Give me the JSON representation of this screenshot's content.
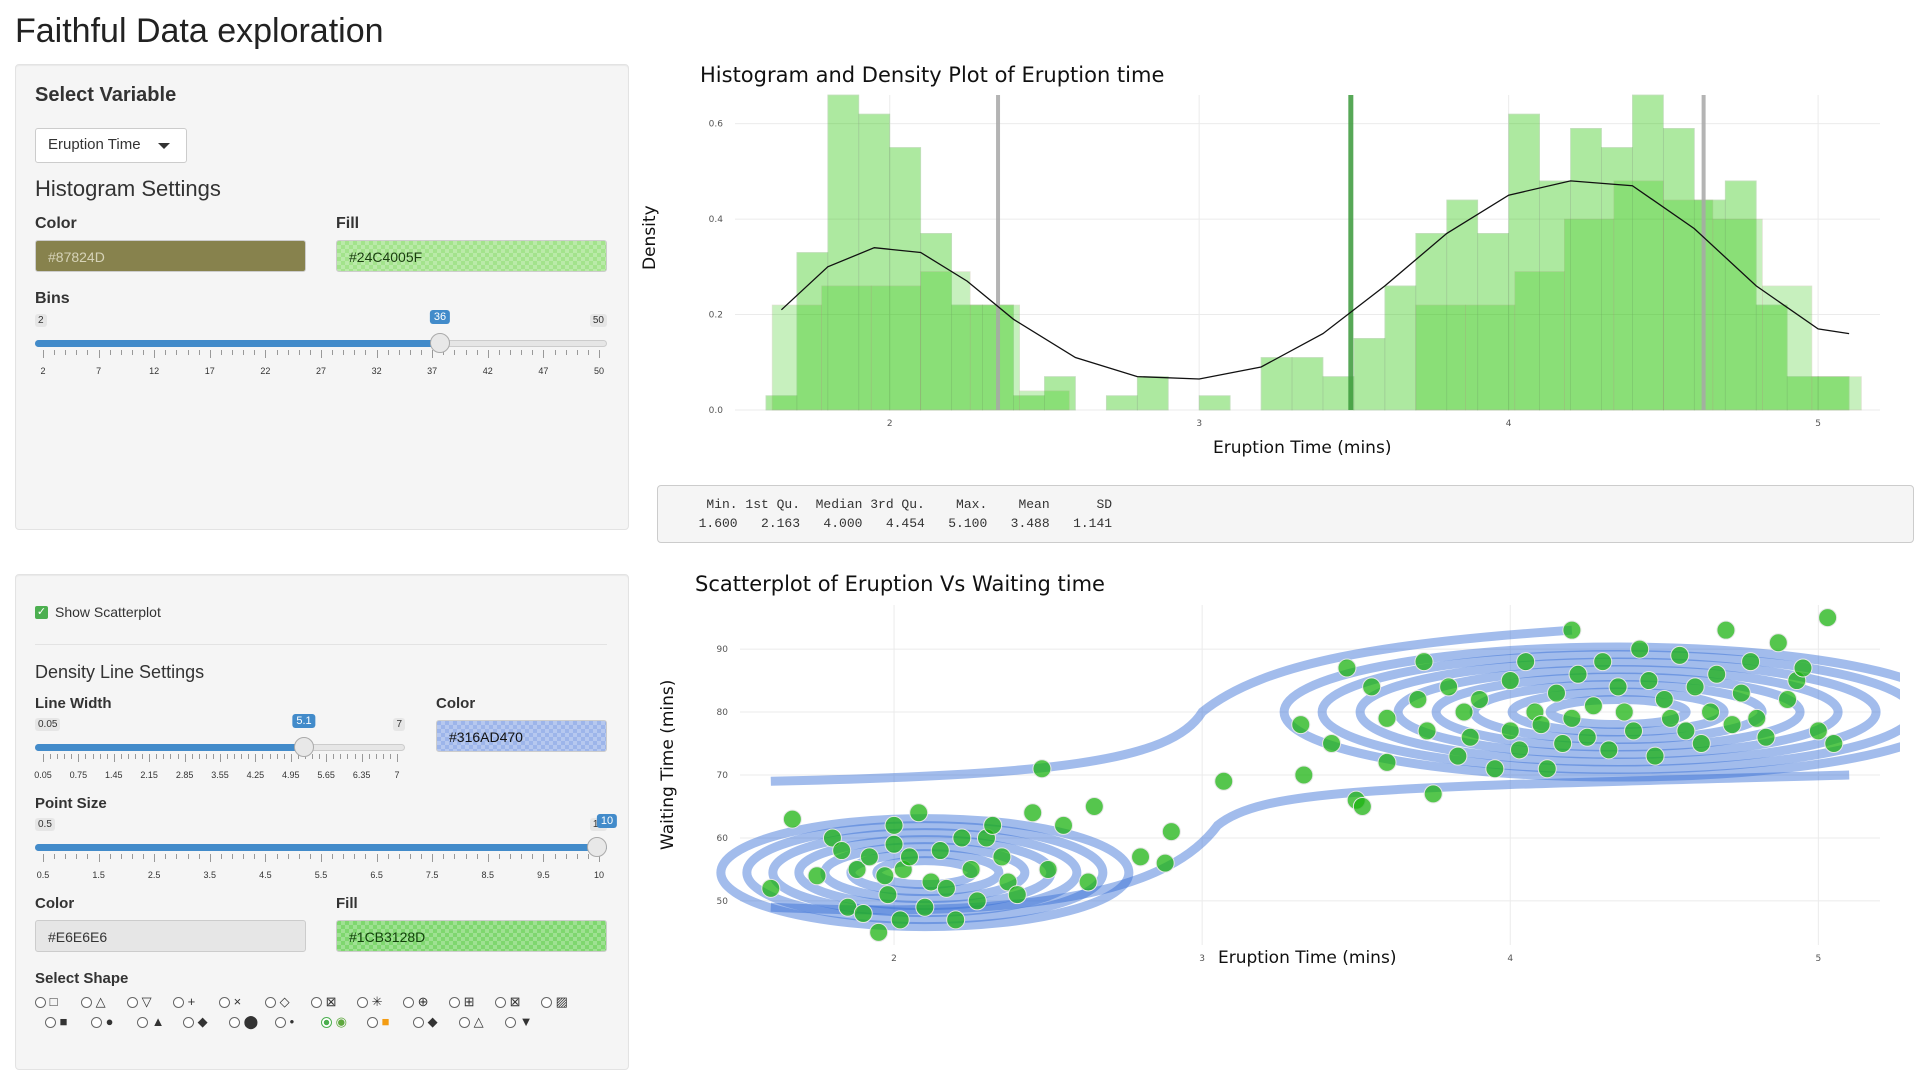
{
  "app": {
    "title": "Faithful Data exploration"
  },
  "panel1": {
    "heading": "Select Variable",
    "select_value": "Eruption Time",
    "hist_heading": "Histogram Settings",
    "color_label": "Color",
    "color_value": "#87824D",
    "fill_label": "Fill",
    "fill_value": "#24C4005F",
    "bins_label": "Bins",
    "bins": {
      "min": "2",
      "max": "50",
      "value": "36",
      "fraction": 0.708,
      "ticks": [
        "2",
        "7",
        "12",
        "17",
        "22",
        "27",
        "32",
        "37",
        "42",
        "47",
        "50"
      ]
    }
  },
  "panel2": {
    "show_scatter_label": "Show Scatterplot",
    "density_heading": "Density Line Settings",
    "linewidth_label": "Line Width",
    "linewidth": {
      "min": "0.05",
      "max": "7",
      "value": "5.1",
      "fraction": 0.727,
      "ticks": [
        "0.05",
        "0.75",
        "1.45",
        "2.15",
        "2.85",
        "3.55",
        "4.25",
        "4.95",
        "5.65",
        "6.35",
        "7"
      ]
    },
    "color_label": "Color",
    "color_value": "#316AD470",
    "pointsize_label": "Point Size",
    "pointsize": {
      "min": "0.5",
      "max": "10",
      "value": "10",
      "fraction": 1.0,
      "ticks": [
        "0.5",
        "1.5",
        "2.5",
        "3.5",
        "4.5",
        "5.5",
        "6.5",
        "7.5",
        "8.5",
        "9.5",
        "10"
      ]
    },
    "pt_color_label": "Color",
    "pt_color_value": "#E6E6E6",
    "pt_fill_label": "Fill",
    "pt_fill_value": "#1CB3128D",
    "shape_label": "Select Shape",
    "shapes_row1": [
      "□",
      "△",
      "▽",
      "+",
      "×",
      "◇",
      "⊠",
      "✳",
      "⊕",
      "⊞",
      "⊠",
      "▨"
    ],
    "shapes_row2": [
      "■",
      "●",
      "▲",
      "◆",
      "⬤",
      "•",
      "◉",
      "■",
      "◆",
      "△",
      "▼"
    ],
    "selected_shape_index": 18
  },
  "summary": {
    "header": "   Min. 1st Qu.  Median 3rd Qu.    Max.    Mean      SD",
    "values": "  1.600   2.163   4.000   4.454   5.100   3.488   1.141"
  },
  "histogram": {
    "title": "Histogram and Density Plot of Eruption time",
    "xlabel": "Eruption Time (mins)",
    "ylabel": "Density"
  },
  "scatter": {
    "title": "Scatterplot of Eruption Vs Waiting time",
    "xlabel": "Eruption Time (mins)",
    "ylabel": "Waiting Time (mins)"
  },
  "colors": {
    "accent": "#428bca",
    "hist_fill": "#24C400",
    "point_fill": "#1CB312",
    "contour": "#316AD4"
  },
  "chart_data": [
    {
      "type": "bar",
      "title": "Histogram and Density Plot of Eruption time",
      "xlabel": "Eruption Time (mins)",
      "ylabel": "Density",
      "xlim": [
        1.5,
        5.2
      ],
      "ylim": [
        0,
        0.66
      ],
      "xticks": [
        "2",
        "3",
        "4",
        "5"
      ],
      "yticks": [
        "0.0",
        "0.2",
        "0.4",
        "0.6"
      ],
      "bars_fine": {
        "x": [
          1.6,
          1.7,
          1.8,
          1.9,
          2.0,
          2.1,
          2.2,
          2.3,
          2.4,
          2.5,
          2.6,
          2.7,
          2.8,
          2.9,
          3.0,
          3.1,
          3.2,
          3.3,
          3.4,
          3.5,
          3.6,
          3.7,
          3.8,
          3.9,
          4.0,
          4.1,
          4.2,
          4.3,
          4.4,
          4.5,
          4.6,
          4.7,
          4.8,
          4.9,
          5.0
        ],
        "density": [
          0.03,
          0.33,
          0.66,
          0.62,
          0.55,
          0.37,
          0.22,
          0.22,
          0.03,
          0.07,
          0,
          0.03,
          0.07,
          0,
          0.03,
          0,
          0.11,
          0.11,
          0.07,
          0.15,
          0.26,
          0.37,
          0.44,
          0.37,
          0.62,
          0.48,
          0.59,
          0.55,
          0.66,
          0.59,
          0.44,
          0.48,
          0.22,
          0.07,
          0.07
        ]
      },
      "bars_coarse": {
        "x": [
          1.62,
          1.78,
          1.94,
          2.1,
          2.26,
          2.42,
          2.58,
          2.74,
          2.9,
          3.06,
          3.22,
          3.38,
          3.54,
          3.7,
          3.86,
          4.02,
          4.18,
          4.34,
          4.5,
          4.66,
          4.82,
          4.98
        ],
        "density": [
          0.22,
          0.26,
          0.26,
          0.29,
          0.22,
          0.04,
          0,
          0,
          0,
          0,
          0,
          0,
          0,
          0.22,
          0.22,
          0.29,
          0.4,
          0.48,
          0.44,
          0.4,
          0.26,
          0.07
        ]
      },
      "vlines": [
        2.35,
        3.49,
        4.63
      ],
      "density_curve": {
        "x": [
          1.65,
          1.8,
          1.95,
          2.1,
          2.25,
          2.4,
          2.6,
          2.8,
          3.0,
          3.2,
          3.4,
          3.6,
          3.8,
          4.0,
          4.2,
          4.4,
          4.6,
          4.8,
          5.0,
          5.1
        ],
        "y": [
          0.21,
          0.3,
          0.34,
          0.33,
          0.27,
          0.19,
          0.11,
          0.07,
          0.065,
          0.09,
          0.16,
          0.26,
          0.37,
          0.45,
          0.48,
          0.47,
          0.38,
          0.26,
          0.17,
          0.16
        ]
      }
    },
    {
      "type": "scatter",
      "title": "Scatterplot of Eruption Vs Waiting time",
      "xlabel": "Eruption Time (mins)",
      "ylabel": "Waiting Time (mins)",
      "xlim": [
        1.5,
        5.2
      ],
      "ylim": [
        43,
        97
      ],
      "xticks": [
        "2",
        "3",
        "4",
        "5"
      ],
      "yticks": [
        "50",
        "60",
        "70",
        "80",
        "90"
      ],
      "points": [
        [
          1.6,
          52
        ],
        [
          1.67,
          63
        ],
        [
          1.75,
          54
        ],
        [
          1.8,
          60
        ],
        [
          1.83,
          58
        ],
        [
          1.85,
          49
        ],
        [
          1.88,
          55
        ],
        [
          1.9,
          48
        ],
        [
          1.92,
          57
        ],
        [
          1.95,
          45
        ],
        [
          1.97,
          54
        ],
        [
          1.98,
          51
        ],
        [
          2.0,
          59
        ],
        [
          2.0,
          62
        ],
        [
          2.02,
          47
        ],
        [
          2.03,
          55
        ],
        [
          2.05,
          57
        ],
        [
          2.08,
          64
        ],
        [
          2.1,
          49
        ],
        [
          2.12,
          53
        ],
        [
          2.15,
          58
        ],
        [
          2.17,
          52
        ],
        [
          2.2,
          47
        ],
        [
          2.22,
          60
        ],
        [
          2.25,
          55
        ],
        [
          2.27,
          50
        ],
        [
          2.3,
          60
        ],
        [
          2.32,
          62
        ],
        [
          2.35,
          57
        ],
        [
          2.37,
          53
        ],
        [
          2.4,
          51
        ],
        [
          2.45,
          64
        ],
        [
          2.48,
          71
        ],
        [
          2.5,
          55
        ],
        [
          2.55,
          62
        ],
        [
          2.63,
          53
        ],
        [
          2.65,
          65
        ],
        [
          2.8,
          57
        ],
        [
          2.88,
          56
        ],
        [
          2.9,
          61
        ],
        [
          3.07,
          69
        ],
        [
          3.32,
          78
        ],
        [
          3.33,
          70
        ],
        [
          3.42,
          75
        ],
        [
          3.47,
          87
        ],
        [
          3.5,
          66
        ],
        [
          3.52,
          65
        ],
        [
          3.55,
          84
        ],
        [
          3.6,
          79
        ],
        [
          3.6,
          72
        ],
        [
          3.7,
          82
        ],
        [
          3.72,
          88
        ],
        [
          3.73,
          77
        ],
        [
          3.75,
          67
        ],
        [
          3.8,
          84
        ],
        [
          3.83,
          73
        ],
        [
          3.85,
          80
        ],
        [
          3.87,
          76
        ],
        [
          3.9,
          82
        ],
        [
          3.95,
          71
        ],
        [
          4.0,
          77
        ],
        [
          4.0,
          85
        ],
        [
          4.03,
          74
        ],
        [
          4.05,
          88
        ],
        [
          4.08,
          80
        ],
        [
          4.1,
          78
        ],
        [
          4.12,
          71
        ],
        [
          4.15,
          83
        ],
        [
          4.17,
          75
        ],
        [
          4.2,
          79
        ],
        [
          4.2,
          93
        ],
        [
          4.22,
          86
        ],
        [
          4.25,
          76
        ],
        [
          4.27,
          81
        ],
        [
          4.3,
          88
        ],
        [
          4.32,
          74
        ],
        [
          4.35,
          84
        ],
        [
          4.37,
          80
        ],
        [
          4.4,
          77
        ],
        [
          4.42,
          90
        ],
        [
          4.45,
          85
        ],
        [
          4.47,
          73
        ],
        [
          4.5,
          82
        ],
        [
          4.52,
          79
        ],
        [
          4.55,
          89
        ],
        [
          4.57,
          77
        ],
        [
          4.6,
          84
        ],
        [
          4.62,
          75
        ],
        [
          4.65,
          80
        ],
        [
          4.67,
          86
        ],
        [
          4.7,
          93
        ],
        [
          4.72,
          78
        ],
        [
          4.75,
          83
        ],
        [
          4.78,
          88
        ],
        [
          4.8,
          79
        ],
        [
          4.83,
          76
        ],
        [
          4.87,
          91
        ],
        [
          4.9,
          82
        ],
        [
          4.93,
          85
        ],
        [
          4.95,
          87
        ],
        [
          5.0,
          77
        ],
        [
          5.03,
          95
        ],
        [
          5.05,
          75
        ]
      ]
    }
  ]
}
